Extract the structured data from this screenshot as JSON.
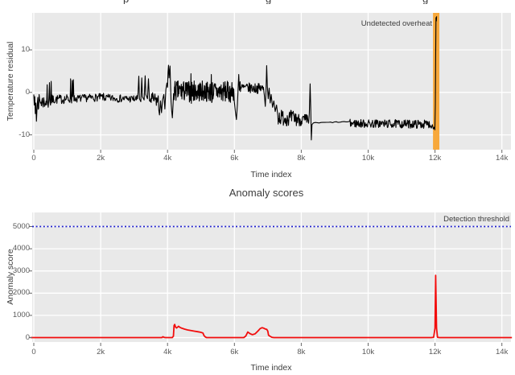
{
  "page": {
    "bg": "#ffffff",
    "plot_bg": "#e9e9e9",
    "grid_color": "#ffffff",
    "tick_text_color": "#5a5a5a",
    "title_text_color": "#3d3d3d"
  },
  "partial_top_title": {
    "visible_descender_glyphs": [
      {
        "char": "p",
        "x": 153
      },
      {
        "char": "g",
        "x": 330
      },
      {
        "char": "g",
        "x": 525
      }
    ]
  },
  "chart_data": [
    {
      "type": "line",
      "name": "temperature-residual",
      "xlabel": "Time index",
      "ylabel": "Temperature residual",
      "xlim": [
        -100,
        14300
      ],
      "ylim": [
        -13.5,
        18.7
      ],
      "grid": true,
      "xticks": {
        "values": [
          0,
          2000,
          4000,
          6000,
          8000,
          10000,
          12000,
          14000
        ],
        "labels": [
          "0",
          "2k",
          "4k",
          "6k",
          "8k",
          "10k",
          "12k",
          "14k"
        ]
      },
      "yticks": {
        "values": [
          10,
          0,
          -10
        ],
        "labels": [
          "10",
          "0",
          "-10"
        ]
      },
      "annotation": {
        "text": "Undetected overheat"
      },
      "highlight_band": {
        "x0": 11940,
        "x1": 12130,
        "color": "#f7a83b"
      },
      "line_color": "#000000",
      "series_ops": [
        {
          "pts": [
            [
              0,
              -0.5
            ],
            [
              15,
              -3
            ],
            [
              30,
              -1
            ],
            [
              45,
              -5
            ],
            [
              60,
              -2.5
            ],
            [
              80,
              -6.8
            ],
            [
              100,
              -3
            ],
            [
              120,
              -1.2
            ]
          ]
        },
        {
          "seg": [
            130,
            380,
            -2.2,
            -2.2,
            1.8,
            14
          ]
        },
        {
          "pts": [
            [
              390,
              -1
            ],
            [
              400,
              1.8
            ],
            [
              410,
              -2
            ],
            [
              430,
              -3.5
            ],
            [
              450,
              -1.5
            ],
            [
              470,
              2.3
            ],
            [
              480,
              -2
            ],
            [
              500,
              -3
            ],
            [
              520,
              2.6
            ],
            [
              535,
              -2.5
            ]
          ]
        },
        {
          "seg": [
            550,
            1080,
            -1.7,
            -1.5,
            1.1,
            16
          ]
        },
        {
          "pts": [
            [
              1090,
              -1
            ],
            [
              1100,
              3.2
            ],
            [
              1115,
              -1.5
            ],
            [
              1130,
              -2.5
            ],
            [
              1150,
              2.8
            ],
            [
              1165,
              -1
            ],
            [
              1185,
              3.0
            ],
            [
              1200,
              -2
            ]
          ]
        },
        {
          "seg": [
            1210,
            2100,
            -1.5,
            -1.1,
            0.9,
            16
          ]
        },
        {
          "seg": [
            2100,
            3100,
            -1.3,
            -1.6,
            0.9,
            16
          ]
        },
        {
          "pts": [
            [
              3120,
              0
            ],
            [
              3140,
              3.8
            ],
            [
              3160,
              -1.5
            ],
            [
              3200,
              -2.2
            ],
            [
              3230,
              3.4
            ],
            [
              3250,
              -1
            ],
            [
              3300,
              -1.8
            ],
            [
              3330,
              3.9
            ],
            [
              3350,
              -0.5
            ],
            [
              3400,
              -1.5
            ],
            [
              3430,
              3.2
            ],
            [
              3460,
              -2
            ]
          ]
        },
        {
          "seg": [
            3470,
            3720,
            -1.6,
            -2.0,
            1.7,
            14
          ]
        },
        {
          "pts": [
            [
              3740,
              -4.2
            ],
            [
              3760,
              -5.3
            ],
            [
              3790,
              -2
            ],
            [
              3820,
              -4.8
            ],
            [
              3850,
              -1.8
            ],
            [
              3890,
              -0.5
            ],
            [
              3920,
              -3.9
            ],
            [
              3950,
              0.6
            ],
            [
              3980,
              2.2
            ],
            [
              4000,
              1.2
            ],
            [
              4015,
              4.8
            ],
            [
              4030,
              6.4
            ],
            [
              4045,
              3.4
            ],
            [
              4060,
              5.0
            ],
            [
              4075,
              6.2
            ],
            [
              4090,
              2.0
            ],
            [
              4105,
              -2.2
            ],
            [
              4125,
              -4.4
            ],
            [
              4145,
              -6.0
            ],
            [
              4165,
              -2.8
            ]
          ]
        },
        {
          "seg": [
            4180,
            4690,
            0.3,
            0.2,
            2.5,
            9
          ]
        },
        {
          "pts": [
            [
              4700,
              4.4
            ],
            [
              4712,
              -2.6
            ]
          ]
        },
        {
          "seg": [
            4724,
            5300,
            0.3,
            0.2,
            2.5,
            9
          ]
        },
        {
          "pts": [
            [
              5310,
              4.2
            ],
            [
              5322,
              -2.4
            ]
          ]
        },
        {
          "seg": [
            5334,
            5980,
            0.2,
            0.1,
            2.5,
            9
          ]
        },
        {
          "pts": [
            [
              5995,
              -2
            ],
            [
              6030,
              -4.5
            ],
            [
              6060,
              -6.4
            ],
            [
              6090,
              -3
            ],
            [
              6110,
              0.8
            ],
            [
              6130,
              4.2
            ],
            [
              6150,
              0.5
            ],
            [
              6170,
              2.5
            ]
          ]
        },
        {
          "seg": [
            6180,
            6880,
            1.1,
            0.9,
            1.2,
            12
          ]
        },
        {
          "pts": [
            [
              6900,
              -1
            ],
            [
              6925,
              -3.3
            ],
            [
              6945,
              0.5
            ],
            [
              6965,
              6.3
            ],
            [
              6985,
              1.5
            ],
            [
              7010,
              -1.5
            ],
            [
              7040,
              1.0
            ],
            [
              7070,
              -2.5
            ],
            [
              7100,
              -0.5
            ],
            [
              7140,
              -3.5
            ],
            [
              7180,
              -2.0
            ],
            [
              7220,
              -4.5
            ],
            [
              7260,
              -3.0
            ],
            [
              7300,
              -5.5
            ]
          ]
        },
        {
          "seg": [
            7310,
            7900,
            -5.8,
            -6.2,
            1.9,
            12
          ]
        },
        {
          "seg": [
            7910,
            8220,
            -6.4,
            -6.6,
            1.5,
            12
          ]
        },
        {
          "pts": [
            [
              8240,
              -5
            ],
            [
              8265,
              2.0
            ],
            [
              8285,
              -4
            ],
            [
              8300,
              -11.2
            ],
            [
              8320,
              -7.6
            ],
            [
              8350,
              -7.3
            ]
          ]
        },
        {
          "seg": [
            8360,
            9450,
            -7.2,
            -6.9,
            0.12,
            60
          ]
        },
        {
          "seg": [
            9460,
            11840,
            -7.3,
            -7.5,
            1.0,
            13
          ]
        },
        {
          "pts": [
            [
              11860,
              -7.8
            ],
            [
              11890,
              -8.4
            ],
            [
              11920,
              -7.6
            ],
            [
              11950,
              -8.6
            ],
            [
              11975,
              -8.2
            ],
            [
              11995,
              -8.8
            ],
            [
              12010,
              -3
            ],
            [
              12020,
              8
            ],
            [
              12030,
              17.6
            ],
            [
              12040,
              16.8
            ],
            [
              12048,
              17.9
            ]
          ]
        }
      ]
    },
    {
      "type": "line",
      "name": "anomaly-scores",
      "title": "Anomaly scores",
      "xlabel": "Time index",
      "ylabel": "Anomaly score",
      "xlim": [
        -100,
        14300
      ],
      "ylim": [
        -200,
        5650
      ],
      "grid": true,
      "xticks": {
        "values": [
          0,
          2000,
          4000,
          6000,
          8000,
          10000,
          12000,
          14000
        ],
        "labels": [
          "0",
          "2k",
          "4k",
          "6k",
          "8k",
          "10k",
          "12k",
          "14k"
        ]
      },
      "yticks": {
        "values": [
          0,
          1000,
          2000,
          3000,
          4000,
          5000
        ],
        "labels": [
          "0",
          "1000",
          "2000",
          "3000",
          "4000",
          "5000"
        ]
      },
      "threshold": {
        "value": 5000,
        "label": "Detection threshold",
        "color": "#2020cc"
      },
      "line_color": "#f20d0d",
      "points": [
        [
          -100,
          0
        ],
        [
          3830,
          0
        ],
        [
          3860,
          35
        ],
        [
          3900,
          12
        ],
        [
          3940,
          0
        ],
        [
          4140,
          0
        ],
        [
          4175,
          60
        ],
        [
          4195,
          540
        ],
        [
          4215,
          590
        ],
        [
          4240,
          470
        ],
        [
          4270,
          430
        ],
        [
          4300,
          470
        ],
        [
          4330,
          510
        ],
        [
          4370,
          460
        ],
        [
          4430,
          420
        ],
        [
          4510,
          380
        ],
        [
          4600,
          345
        ],
        [
          4700,
          315
        ],
        [
          4800,
          290
        ],
        [
          4900,
          265
        ],
        [
          4990,
          240
        ],
        [
          5060,
          205
        ],
        [
          5090,
          90
        ],
        [
          5130,
          25
        ],
        [
          5170,
          0
        ],
        [
          6280,
          0
        ],
        [
          6340,
          70
        ],
        [
          6400,
          250
        ],
        [
          6460,
          185
        ],
        [
          6540,
          130
        ],
        [
          6620,
          170
        ],
        [
          6700,
          290
        ],
        [
          6770,
          405
        ],
        [
          6830,
          445
        ],
        [
          6880,
          420
        ],
        [
          6930,
          385
        ],
        [
          6970,
          365
        ],
        [
          7000,
          290
        ],
        [
          7020,
          110
        ],
        [
          7070,
          55
        ],
        [
          7120,
          15
        ],
        [
          7180,
          0
        ],
        [
          11890,
          0
        ],
        [
          11960,
          15
        ],
        [
          12000,
          420
        ],
        [
          12020,
          2800
        ],
        [
          12045,
          420
        ],
        [
          12075,
          15
        ],
        [
          12130,
          0
        ],
        [
          14300,
          0
        ]
      ]
    }
  ]
}
